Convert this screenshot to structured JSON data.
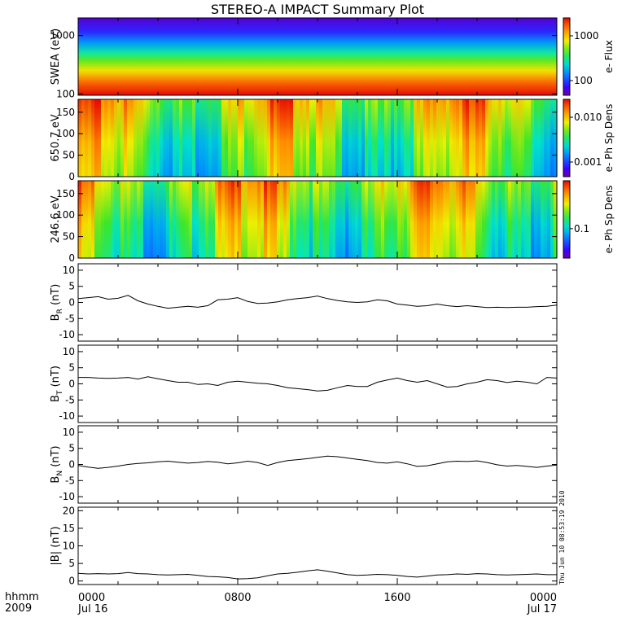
{
  "title": "STEREO-A IMPACT Summary Plot",
  "corner": {
    "line1": "hhmm",
    "line2": "2009"
  },
  "stamp": "Thu Jun 10 08:53:19 2010",
  "x_axis": {
    "ticks": [
      "0000",
      "0800",
      "1600",
      "0000"
    ],
    "dates": [
      "Jul 16",
      "Jul 17"
    ]
  },
  "chart_data": [
    {
      "type": "heatmap",
      "ylabel": "SWEA (eV)",
      "yscale": "log",
      "ylim": [
        95,
        2000
      ],
      "yticks": [
        "1000",
        "100"
      ],
      "colorbar": {
        "label": "e- Flux",
        "ticks": [
          "1000",
          "100"
        ],
        "scale": "log"
      }
    },
    {
      "type": "heatmap",
      "ylabel": "650.7 eV",
      "ylim": [
        0,
        180
      ],
      "yticks": [
        "150",
        "100",
        "50",
        "0"
      ],
      "colorbar": {
        "label": "e- Ph Sp Dens",
        "ticks": [
          "0.010",
          "0.001"
        ],
        "scale": "log"
      }
    },
    {
      "type": "heatmap",
      "ylabel": "246.6 eV",
      "ylim": [
        0,
        180
      ],
      "yticks": [
        "150",
        "100",
        "50",
        "0"
      ],
      "colorbar": {
        "label": "e- Ph Sp Dens",
        "ticks": [
          "0.1"
        ],
        "scale": "log"
      }
    },
    {
      "type": "line",
      "ylabel": "B_R (nT)",
      "ylim": [
        -12,
        12
      ],
      "yticks": [
        "10",
        "5",
        "0",
        "-5",
        "-10"
      ],
      "x": [
        0,
        0.5,
        1,
        1.5,
        2,
        2.5,
        3,
        3.5,
        4,
        4.5,
        5,
        5.5,
        6,
        6.5,
        7,
        7.5,
        8,
        8.5,
        9,
        9.5,
        10,
        10.5,
        11,
        11.5,
        12,
        12.5,
        13,
        13.5,
        14,
        14.5,
        15,
        15.5,
        16,
        16.5,
        17,
        17.5,
        18,
        18.5,
        19,
        19.5,
        20,
        20.5,
        21,
        21.5,
        22,
        22.5,
        23,
        23.5,
        24
      ],
      "values": [
        1.2,
        1.5,
        1.8,
        1,
        1.3,
        2.2,
        0.5,
        -0.5,
        -1.2,
        -1.8,
        -1.5,
        -1.2,
        -1.5,
        -1,
        0.8,
        1,
        1.5,
        0.3,
        -0.3,
        -0.2,
        0.2,
        0.8,
        1.2,
        1.5,
        2,
        1.2,
        0.6,
        0.2,
        0,
        0.2,
        0.8,
        0.5,
        -0.5,
        -0.8,
        -1.2,
        -1,
        -0.5,
        -1,
        -1.3,
        -1,
        -1.3,
        -1.6,
        -1.5,
        -1.6,
        -1.5,
        -1.5,
        -1.3,
        -1.2,
        -0.8
      ]
    },
    {
      "type": "line",
      "ylabel": "B_T (nT)",
      "ylim": [
        -12,
        12
      ],
      "yticks": [
        "10",
        "5",
        "0",
        "-5",
        "-10"
      ],
      "x": [
        0,
        0.5,
        1,
        1.5,
        2,
        2.5,
        3,
        3.5,
        4,
        4.5,
        5,
        5.5,
        6,
        6.5,
        7,
        7.5,
        8,
        8.5,
        9,
        9.5,
        10,
        10.5,
        11,
        11.5,
        12,
        12.5,
        13,
        13.5,
        14,
        14.5,
        15,
        15.5,
        16,
        16.5,
        17,
        17.5,
        18,
        18.5,
        19,
        19.5,
        20,
        20.5,
        21,
        21.5,
        22,
        22.5,
        23,
        23.5,
        24
      ],
      "values": [
        2,
        2,
        1.8,
        1.7,
        1.8,
        2,
        1.5,
        2.2,
        1.6,
        1,
        0.5,
        0.5,
        -0.2,
        0,
        -0.5,
        0.5,
        0.8,
        0.5,
        0.2,
        0,
        -0.5,
        -1.2,
        -1.5,
        -1.8,
        -2.2,
        -2,
        -1.2,
        -0.5,
        -0.8,
        -0.8,
        0.5,
        1.2,
        1.8,
        1,
        0.5,
        1,
        0,
        -1,
        -0.8,
        0,
        0.5,
        1.3,
        1,
        0.4,
        0.8,
        0.5,
        0,
        2,
        1.8
      ]
    },
    {
      "type": "line",
      "ylabel": "B_N (nT)",
      "ylim": [
        -12,
        12
      ],
      "yticks": [
        "10",
        "5",
        "0",
        "-5",
        "-10"
      ],
      "x": [
        0,
        0.5,
        1,
        1.5,
        2,
        2.5,
        3,
        3.5,
        4,
        4.5,
        5,
        5.5,
        6,
        6.5,
        7,
        7.5,
        8,
        8.5,
        9,
        9.5,
        10,
        10.5,
        11,
        11.5,
        12,
        12.5,
        13,
        13.5,
        14,
        14.5,
        15,
        15.5,
        16,
        16.5,
        17,
        17.5,
        18,
        18.5,
        19,
        19.5,
        20,
        20.5,
        21,
        21.5,
        22,
        22.5,
        23,
        23.5,
        24
      ],
      "values": [
        -0.3,
        -0.8,
        -1.2,
        -0.9,
        -0.5,
        0,
        0.3,
        0.5,
        0.8,
        1,
        0.7,
        0.4,
        0.6,
        0.9,
        0.7,
        0.2,
        0.5,
        1,
        0.6,
        -0.3,
        0.6,
        1.2,
        1.5,
        1.8,
        2.2,
        2.6,
        2.4,
        2,
        1.6,
        1.2,
        0.6,
        0.4,
        0.8,
        0.2,
        -0.6,
        -0.4,
        0.2,
        0.8,
        1,
        0.9,
        1.1,
        0.6,
        -0.1,
        -0.5,
        -0.3,
        -0.6,
        -0.9,
        -0.5,
        -0.2
      ]
    },
    {
      "type": "line",
      "ylabel": "|B| (nT)",
      "ylim": [
        -1,
        21
      ],
      "yticks": [
        "20",
        "15",
        "10",
        "5",
        "0"
      ],
      "x": [
        0,
        0.5,
        1,
        1.5,
        2,
        2.5,
        3,
        3.5,
        4,
        4.5,
        5,
        5.5,
        6,
        6.5,
        7,
        7.5,
        8,
        8.5,
        9,
        9.5,
        10,
        10.5,
        11,
        11.5,
        12,
        12.5,
        13,
        13.5,
        14,
        14.5,
        15,
        15.5,
        16,
        16.5,
        17,
        17.5,
        18,
        18.5,
        19,
        19.5,
        20,
        20.5,
        21,
        21.5,
        22,
        22.5,
        23,
        23.5,
        24
      ],
      "values": [
        2.2,
        2,
        2.1,
        2,
        2.1,
        2.4,
        2.1,
        2,
        1.8,
        1.7,
        1.8,
        1.9,
        1.6,
        1.3,
        1.2,
        1,
        0.6,
        0.7,
        0.9,
        1.5,
        2,
        2.2,
        2.5,
        2.9,
        3.2,
        2.8,
        2.3,
        1.8,
        1.6,
        1.7,
        1.9,
        1.8,
        1.6,
        1.3,
        1.1,
        1.4,
        1.7,
        1.8,
        2,
        1.9,
        2.1,
        2,
        1.8,
        1.7,
        1.8,
        1.9,
        2,
        1.8,
        1.8
      ]
    }
  ]
}
